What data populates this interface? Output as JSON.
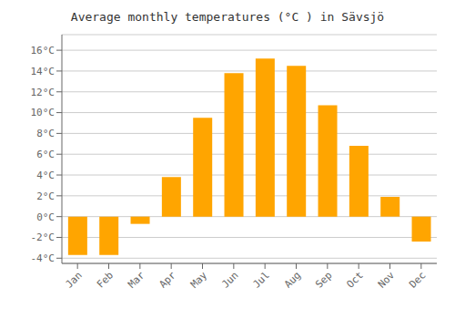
{
  "chart_data": {
    "type": "bar",
    "title": "Average monthly temperatures (°C ) in Sävsjö",
    "categories": [
      "Jan",
      "Feb",
      "Mar",
      "Apr",
      "May",
      "Jun",
      "Jul",
      "Aug",
      "Sep",
      "Oct",
      "Nov",
      "Dec"
    ],
    "values": [
      -3.7,
      -3.7,
      -0.7,
      3.8,
      9.5,
      13.8,
      15.2,
      14.5,
      10.7,
      6.8,
      1.9,
      -2.4
    ],
    "color": "#FFA500",
    "ylim": [
      -4.5,
      17.5
    ],
    "yticks": [
      {
        "value": -4,
        "label": "-4°C"
      },
      {
        "value": -2,
        "label": "-2°C"
      },
      {
        "value": 0,
        "label": "0°C"
      },
      {
        "value": 2,
        "label": "2°C"
      },
      {
        "value": 4,
        "label": "4°C"
      },
      {
        "value": 6,
        "label": "6°C"
      },
      {
        "value": 8,
        "label": "8°C"
      },
      {
        "value": 10,
        "label": "10°C"
      },
      {
        "value": 12,
        "label": "12°C"
      },
      {
        "value": 14,
        "label": "14°C"
      },
      {
        "value": 16,
        "label": "16°C"
      }
    ],
    "grid": true
  }
}
